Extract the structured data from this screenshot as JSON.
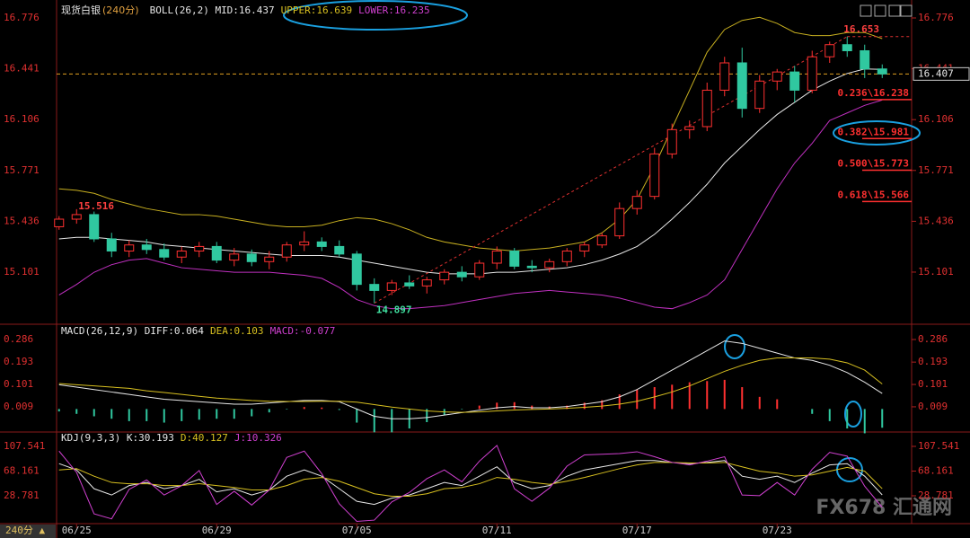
{
  "chart_data": [
    {
      "type": "candlestick",
      "title": "现货白银",
      "period": "(240分)",
      "legend": [
        {
          "text": "BOLL(26,2) MID:16.437",
          "color": "#e8e8e8"
        },
        {
          "text": "UPPER:16.639",
          "color": "#d8c020"
        },
        {
          "text": "LOWER:16.235",
          "color": "#d040d0"
        }
      ],
      "categories": [
        null,
        "06/25",
        null,
        null,
        null,
        null,
        null,
        null,
        null,
        "06/29",
        null,
        null,
        null,
        null,
        null,
        null,
        null,
        "07/05",
        null,
        null,
        null,
        null,
        null,
        null,
        null,
        "07/11",
        null,
        null,
        null,
        null,
        null,
        null,
        null,
        "07/17",
        null,
        null,
        null,
        null,
        null,
        null,
        null,
        "07/23",
        null,
        null,
        null,
        null,
        null,
        null
      ],
      "open": [
        15.4,
        15.45,
        15.48,
        15.32,
        15.24,
        15.28,
        15.25,
        15.2,
        15.24,
        15.27,
        15.18,
        15.22,
        15.17,
        15.2,
        15.28,
        15.3,
        15.27,
        15.22,
        15.02,
        14.98,
        15.03,
        15.01,
        15.05,
        15.1,
        15.07,
        15.16,
        15.24,
        15.14,
        15.13,
        15.17,
        15.24,
        15.28,
        15.34,
        15.52,
        15.6,
        15.88,
        16.04,
        16.06,
        16.3,
        16.48,
        16.18,
        16.36,
        16.42,
        16.3,
        16.52,
        16.6,
        16.56,
        16.44
      ],
      "high": [
        15.47,
        15.516,
        15.5,
        15.36,
        15.31,
        15.32,
        15.29,
        15.27,
        15.3,
        15.3,
        15.26,
        15.25,
        15.24,
        15.3,
        15.37,
        15.33,
        15.31,
        15.24,
        15.06,
        15.05,
        15.08,
        15.07,
        15.12,
        15.14,
        15.18,
        15.27,
        15.26,
        15.18,
        15.19,
        15.26,
        15.3,
        15.36,
        15.56,
        15.64,
        15.92,
        16.08,
        16.1,
        16.35,
        16.52,
        16.58,
        16.4,
        16.44,
        16.46,
        16.56,
        16.62,
        16.653,
        16.6,
        16.47
      ],
      "low": [
        15.38,
        15.42,
        15.3,
        15.2,
        15.2,
        15.22,
        15.18,
        15.16,
        15.2,
        15.16,
        15.14,
        15.14,
        15.12,
        15.17,
        15.24,
        15.24,
        15.2,
        14.98,
        14.897,
        14.95,
        14.99,
        14.96,
        15.02,
        15.04,
        15.05,
        15.12,
        15.12,
        15.1,
        15.1,
        15.14,
        15.2,
        15.26,
        15.32,
        15.48,
        15.58,
        15.85,
        15.98,
        16.03,
        16.26,
        16.12,
        16.15,
        16.3,
        16.22,
        16.28,
        16.48,
        16.52,
        16.38,
        16.38
      ],
      "close": [
        15.45,
        15.48,
        15.32,
        15.24,
        15.28,
        15.25,
        15.2,
        15.24,
        15.27,
        15.18,
        15.22,
        15.17,
        15.2,
        15.28,
        15.3,
        15.27,
        15.22,
        15.02,
        14.98,
        15.03,
        15.01,
        15.05,
        15.1,
        15.07,
        15.16,
        15.24,
        15.14,
        15.13,
        15.17,
        15.24,
        15.28,
        15.34,
        15.52,
        15.6,
        15.88,
        16.04,
        16.06,
        16.3,
        16.48,
        16.18,
        16.36,
        16.42,
        16.3,
        16.52,
        16.6,
        16.56,
        16.44,
        16.407
      ],
      "up_color": "#ff3030",
      "down_color": "#30c8a0",
      "bands": [
        {
          "color": "#c8b020",
          "values": [
            15.65,
            15.64,
            15.62,
            15.58,
            15.55,
            15.52,
            15.5,
            15.48,
            15.48,
            15.47,
            15.45,
            15.43,
            15.41,
            15.4,
            15.4,
            15.41,
            15.44,
            15.46,
            15.45,
            15.42,
            15.38,
            15.33,
            15.3,
            15.28,
            15.26,
            15.25,
            15.24,
            15.25,
            15.26,
            15.28,
            15.3,
            15.36,
            15.45,
            15.58,
            15.8,
            16.05,
            16.3,
            16.55,
            16.7,
            16.76,
            16.78,
            16.74,
            16.68,
            16.66,
            16.66,
            16.68,
            16.68,
            16.64
          ]
        },
        {
          "color": "#e8e8e8",
          "values": [
            15.32,
            15.33,
            15.33,
            15.32,
            15.31,
            15.3,
            15.28,
            15.27,
            15.26,
            15.25,
            15.24,
            15.23,
            15.22,
            15.21,
            15.21,
            15.21,
            15.2,
            15.18,
            15.16,
            15.14,
            15.12,
            15.1,
            15.09,
            15.09,
            15.09,
            15.1,
            15.1,
            15.11,
            15.12,
            15.13,
            15.15,
            15.18,
            15.22,
            15.27,
            15.35,
            15.45,
            15.56,
            15.68,
            15.82,
            15.93,
            16.04,
            16.14,
            16.22,
            16.3,
            16.36,
            16.41,
            16.44,
            16.437
          ]
        },
        {
          "color": "#c030c0",
          "values": [
            14.95,
            15.02,
            15.1,
            15.15,
            15.18,
            15.19,
            15.16,
            15.13,
            15.12,
            15.11,
            15.1,
            15.1,
            15.1,
            15.09,
            15.08,
            15.06,
            15.0,
            14.92,
            14.88,
            14.86,
            14.86,
            14.87,
            14.88,
            14.9,
            14.92,
            14.94,
            14.96,
            14.97,
            14.98,
            14.97,
            14.96,
            14.95,
            14.93,
            14.9,
            14.87,
            14.86,
            14.9,
            14.95,
            15.05,
            15.25,
            15.45,
            15.65,
            15.82,
            15.95,
            16.1,
            16.15,
            16.2,
            16.235
          ]
        }
      ],
      "fib_levels": [
        {
          "label": "0.236\\16.238",
          "value": 16.238
        },
        {
          "label": "0.382\\15.981",
          "value": 15.981
        },
        {
          "label": "0.500\\15.773",
          "value": 15.773
        },
        {
          "label": "0.618\\15.566",
          "value": 15.566
        }
      ],
      "ylim": [
        14.793,
        16.847
      ],
      "yticks": [
        16.776,
        16.441,
        16.106,
        15.771,
        15.436,
        15.101
      ]
    },
    {
      "type": "macd",
      "legend": [
        {
          "text": "MACD(26,12,9) DIFF:0.064",
          "color": "#e8e8e8"
        },
        {
          "text": "DEA:0.103",
          "color": "#d8c020"
        },
        {
          "text": "MACD:-0.077",
          "color": "#d040d0"
        }
      ],
      "series": [
        {
          "color": "#e8e8e8",
          "values": [
            0.1,
            0.09,
            0.08,
            0.07,
            0.06,
            0.05,
            0.04,
            0.035,
            0.03,
            0.025,
            0.02,
            0.02,
            0.025,
            0.03,
            0.035,
            0.035,
            0.03,
            0.0,
            -0.03,
            -0.04,
            -0.04,
            -0.035,
            -0.025,
            -0.015,
            -0.005,
            0.005,
            0.01,
            0.005,
            0.005,
            0.01,
            0.02,
            0.03,
            0.05,
            0.08,
            0.12,
            0.16,
            0.2,
            0.24,
            0.28,
            0.27,
            0.25,
            0.23,
            0.21,
            0.2,
            0.18,
            0.15,
            0.11,
            0.064
          ]
        },
        {
          "color": "#d8c020",
          "values": [
            0.105,
            0.1,
            0.095,
            0.09,
            0.085,
            0.075,
            0.068,
            0.06,
            0.052,
            0.045,
            0.04,
            0.035,
            0.032,
            0.031,
            0.031,
            0.032,
            0.032,
            0.028,
            0.018,
            0.008,
            0.0,
            -0.008,
            -0.012,
            -0.014,
            -0.012,
            -0.008,
            -0.004,
            -0.002,
            0.0,
            0.003,
            0.007,
            0.012,
            0.02,
            0.032,
            0.05,
            0.07,
            0.095,
            0.125,
            0.155,
            0.18,
            0.2,
            0.21,
            0.21,
            0.21,
            0.205,
            0.19,
            0.16,
            0.103
          ]
        }
      ],
      "histogram": [
        -0.01,
        -0.02,
        -0.03,
        -0.04,
        -0.05,
        -0.05,
        -0.056,
        -0.05,
        -0.044,
        -0.04,
        -0.04,
        -0.03,
        -0.014,
        -0.002,
        0.008,
        0.006,
        -0.004,
        -0.056,
        -0.096,
        -0.096,
        -0.08,
        -0.054,
        -0.026,
        -0.002,
        0.014,
        0.026,
        0.028,
        0.014,
        0.01,
        0.014,
        0.026,
        0.036,
        0.06,
        0.08,
        0.09,
        0.1,
        0.11,
        0.115,
        0.12,
        0.09,
        0.05,
        0.04,
        0.0,
        -0.02,
        -0.05,
        -0.08,
        -0.1,
        -0.077
      ],
      "up_color": "#ff3030",
      "down_color": "#30c8a0",
      "ylim": [
        -0.091,
        0.334
      ],
      "yticks": [
        0.286,
        0.193,
        0.101,
        0.009
      ]
    },
    {
      "type": "kdj",
      "legend": [
        {
          "text": "KDJ(9,3,3) K:30.193",
          "color": "#e8e8e8"
        },
        {
          "text": "D:40.127",
          "color": "#d8c020"
        },
        {
          "text": "J:10.326",
          "color": "#d040d0"
        }
      ],
      "series": [
        {
          "color": "#e8e8e8",
          "values": [
            80,
            70,
            40,
            30,
            45,
            50,
            40,
            45,
            55,
            35,
            40,
            30,
            38,
            60,
            70,
            60,
            40,
            20,
            15,
            25,
            30,
            40,
            50,
            45,
            60,
            75,
            50,
            40,
            45,
            60,
            70,
            75,
            80,
            85,
            85,
            82,
            80,
            82,
            85,
            60,
            55,
            60,
            50,
            65,
            78,
            80,
            60,
            30.193
          ]
        },
        {
          "color": "#d8c020",
          "values": [
            70,
            72,
            60,
            50,
            48,
            48,
            45,
            45,
            48,
            45,
            42,
            38,
            38,
            45,
            55,
            58,
            52,
            42,
            32,
            28,
            28,
            32,
            40,
            42,
            48,
            58,
            55,
            50,
            47,
            52,
            58,
            65,
            72,
            78,
            82,
            82,
            81,
            81,
            82,
            75,
            68,
            65,
            60,
            62,
            68,
            74,
            68,
            40.127
          ]
        },
        {
          "color": "#d040d0",
          "values": [
            100,
            66,
            0,
            -8,
            39,
            54,
            30,
            45,
            69,
            15,
            36,
            14,
            38,
            90,
            100,
            64,
            16,
            -12,
            -10,
            19,
            34,
            56,
            70,
            51,
            84,
            109,
            40,
            20,
            41,
            76,
            94,
            95,
            96,
            99,
            91,
            82,
            78,
            84,
            91,
            30,
            29,
            50,
            30,
            71,
            98,
            92,
            44,
            10.326
          ]
        }
      ],
      "ylim": [
        -14.2,
        124.7
      ],
      "yticks": [
        107.541,
        68.161,
        28.781
      ]
    }
  ],
  "period_button": "240分 ▲",
  "watermark": "FX678 汇通网"
}
